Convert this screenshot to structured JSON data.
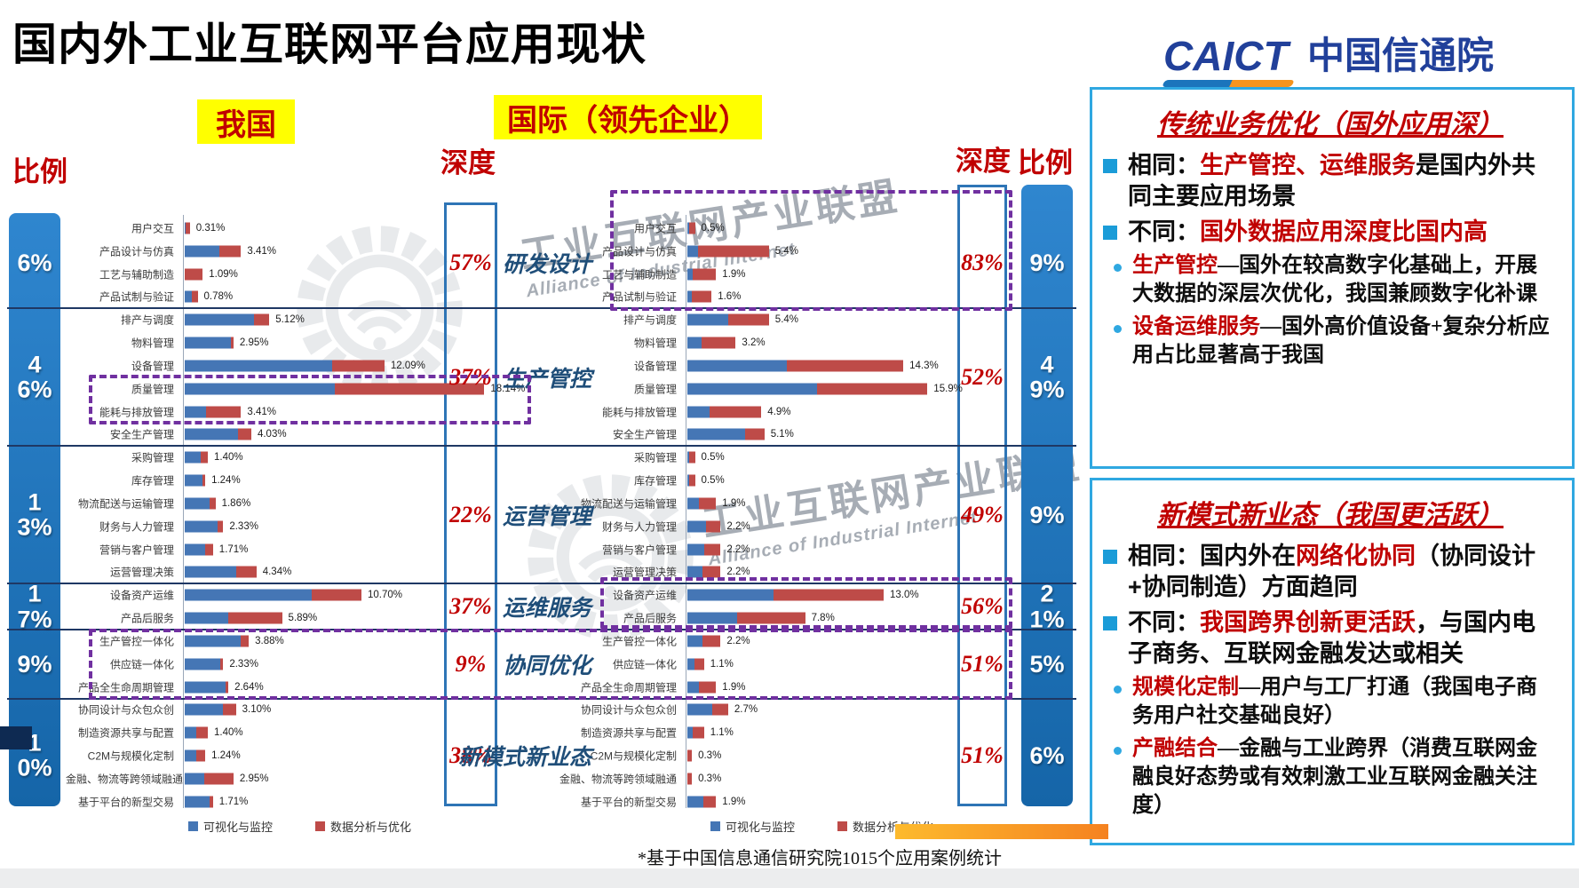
{
  "title": "国内外工业互联网平台应用现状",
  "logo": {
    "caict": "CAICT",
    "cn": "中国信通院"
  },
  "headers": {
    "china": "我国",
    "intl": "国际（领先企业）",
    "ratio": "比例",
    "depth": "深度"
  },
  "watermarks": {
    "cn": "工业互联网产业联盟",
    "en": "Alliance of Industrial Internet"
  },
  "footnote": "*基于中国信息通信研究院1015个应用案例统计",
  "chart_data": {
    "type": "bar",
    "orientation": "horizontal",
    "unit": "%",
    "legend": [
      "可视化与监控",
      "数据分析与优化"
    ],
    "series_colors": {
      "可视化与监控": "#4576B5",
      "数据分析与优化": "#BE4B48"
    },
    "categories": [
      "用户交互",
      "产品设计与仿真",
      "工艺与辅助制造",
      "产品试制与验证",
      "排产与调度",
      "物料管理",
      "设备管理",
      "质量管理",
      "能耗与排放管理",
      "安全生产管理",
      "采购管理",
      "库存管理",
      "物流配送与运输管理",
      "财务与人力管理",
      "营销与客户管理",
      "运营管理决策",
      "设备资产运维",
      "产品后服务",
      "生产管控一体化",
      "供应链一体化",
      "产品全生命周期管理",
      "协同设计与众包众创",
      "制造资源共享与配置",
      "C2M与规模化定制",
      "金融、物流等跨领域融通",
      "基于平台的新型交易"
    ],
    "groups": [
      {
        "label": "研发设计",
        "rows": 4,
        "china_depth": "57%",
        "intl_depth": "83%",
        "china_ratio": "6%",
        "intl_ratio": "9%"
      },
      {
        "label": "生产管控",
        "rows": 6,
        "china_depth": "37%",
        "intl_depth": "52%",
        "china_ratio": "46%",
        "intl_ratio": "49%"
      },
      {
        "label": "运营管理",
        "rows": 6,
        "china_depth": "22%",
        "intl_depth": "49%",
        "china_ratio": "13%",
        "intl_ratio": "9%"
      },
      {
        "label": "运维服务",
        "rows": 2,
        "china_depth": "37%",
        "intl_depth": "56%",
        "china_ratio": "17%",
        "intl_ratio": "21%"
      },
      {
        "label": "协同优化",
        "rows": 3,
        "china_depth": "9%",
        "intl_depth": "51%",
        "china_ratio": "9%",
        "intl_ratio": "5%"
      },
      {
        "label": "新模式新业态",
        "rows": 5,
        "china_depth": "38%",
        "intl_depth": "51%",
        "china_ratio": "10%",
        "intl_ratio": "6%"
      }
    ],
    "china": {
      "total_values": [
        0.31,
        3.41,
        1.09,
        0.78,
        5.12,
        2.95,
        12.09,
        18.14,
        3.41,
        4.03,
        1.4,
        1.24,
        1.86,
        2.33,
        1.71,
        4.34,
        10.7,
        5.89,
        3.88,
        2.33,
        2.64,
        3.1,
        1.4,
        1.24,
        2.95,
        1.71
      ],
      "value_labels": [
        "0.31%",
        "3.41%",
        "1.09%",
        "0.78%",
        "5.12%",
        "2.95%",
        "12.09%",
        "18.14%",
        "3.41%",
        "4.03%",
        "1.40%",
        "1.24%",
        "1.86%",
        "2.33%",
        "1.71%",
        "4.34%",
        "10.70%",
        "5.89%",
        "3.88%",
        "2.33%",
        "2.64%",
        "3.10%",
        "1.40%",
        "1.24%",
        "2.95%",
        "1.71%"
      ],
      "blue_fraction": [
        0.15,
        0.62,
        0.0,
        0.55,
        0.82,
        0.95,
        0.74,
        0.5,
        0.38,
        0.8,
        0.7,
        0.88,
        0.82,
        0.85,
        0.72,
        0.72,
        0.72,
        0.45,
        0.88,
        0.92,
        0.93,
        0.75,
        0.5,
        0.55,
        0.4,
        0.88
      ]
    },
    "intl": {
      "total_values": [
        0.5,
        5.4,
        1.9,
        1.6,
        5.4,
        3.2,
        14.3,
        15.9,
        4.9,
        5.1,
        0.5,
        0.5,
        1.9,
        2.2,
        2.2,
        2.2,
        13.0,
        7.8,
        2.2,
        1.1,
        1.9,
        2.7,
        1.1,
        0.3,
        0.3,
        1.9
      ],
      "value_labels": [
        "0.5%",
        "5.4%",
        "1.9%",
        "1.6%",
        "5.4%",
        "3.2%",
        "14.3%",
        "15.9%",
        "4.9%",
        "5.1%",
        "0.5%",
        "0.5%",
        "1.9%",
        "2.2%",
        "2.2%",
        "2.2%",
        "13.0%",
        "7.8%",
        "2.2%",
        "1.1%",
        "1.9%",
        "2.7%",
        "1.1%",
        "0.3%",
        "0.3%",
        "1.9%"
      ],
      "blue_fraction": [
        0.2,
        0.13,
        0.2,
        0.2,
        0.5,
        0.3,
        0.46,
        0.54,
        0.3,
        0.75,
        0.25,
        0.25,
        0.4,
        0.55,
        0.5,
        0.45,
        0.44,
        0.42,
        0.45,
        0.45,
        0.4,
        0.6,
        0.3,
        0.0,
        0.0,
        0.55
      ]
    }
  },
  "panels": [
    {
      "title": "传统业务优化（国外应用深）",
      "bullets": [
        {
          "type": "square",
          "segments": [
            {
              "text": "相同：",
              "color": "black"
            },
            {
              "text": "生产管控、运维服务",
              "color": "red"
            },
            {
              "text": "是国内外共同主要应用场景",
              "color": "black"
            }
          ]
        },
        {
          "type": "square",
          "segments": [
            {
              "text": "不同：",
              "color": "black"
            },
            {
              "text": "国外数据应用深度比国内高",
              "color": "red"
            }
          ]
        },
        {
          "type": "dot",
          "segments": [
            {
              "text": "生产管控",
              "color": "red"
            },
            {
              "text": "—国外在较高数字化基础上，开展大数据的深层次优化，我国兼顾数字化补课",
              "color": "black"
            }
          ]
        },
        {
          "type": "dot",
          "segments": [
            {
              "text": "设备运维服务",
              "color": "red"
            },
            {
              "text": "—国外高价值设备+复杂分析应用占比显著高于我国",
              "color": "black"
            }
          ]
        }
      ]
    },
    {
      "title": "新模式新业态（我国更活跃）",
      "bullets": [
        {
          "type": "square",
          "segments": [
            {
              "text": "相同：国内外在",
              "color": "black"
            },
            {
              "text": "网络化协同",
              "color": "red"
            },
            {
              "text": "（协同设计+协同制造）方面趋同",
              "color": "black"
            }
          ]
        },
        {
          "type": "square",
          "segments": [
            {
              "text": "不同：",
              "color": "black"
            },
            {
              "text": "我国跨界创新更活跃",
              "color": "red"
            },
            {
              "text": "，与国内电子商务、互联网金融发达或相关",
              "color": "black"
            }
          ]
        },
        {
          "type": "dot",
          "segments": [
            {
              "text": "规模化定制",
              "color": "red"
            },
            {
              "text": "—用户与工厂打通（我国电子商务用户社交基础良好）",
              "color": "black"
            }
          ]
        },
        {
          "type": "dot",
          "segments": [
            {
              "text": "产融结合",
              "color": "red"
            },
            {
              "text": "—金融与工业跨界（消费互联网金融良好态势或有效刺激工业互联网金融关注度）",
              "color": "black"
            }
          ]
        }
      ]
    }
  ]
}
